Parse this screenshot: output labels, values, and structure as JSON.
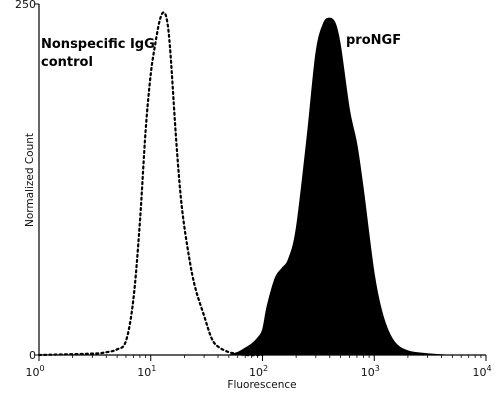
{
  "chart_data": {
    "type": "area",
    "xlabel": "Fluorescence",
    "ylabel": "Normalized Count",
    "xscale": "log",
    "xlim": [
      1,
      10000
    ],
    "ylim": [
      0,
      250
    ],
    "x_ticks": [
      {
        "value": 1,
        "base": "10",
        "exp": "0"
      },
      {
        "value": 10,
        "base": "10",
        "exp": "1"
      },
      {
        "value": 100,
        "base": "10",
        "exp": "2"
      },
      {
        "value": 1000,
        "base": "10",
        "exp": "3"
      },
      {
        "value": 10000,
        "base": "10",
        "exp": "4"
      }
    ],
    "y_ticks": [
      {
        "value": 0,
        "label": "0"
      },
      {
        "value": 250,
        "label": "250"
      }
    ],
    "grid": false,
    "series": [
      {
        "name": "Nonspecific IgG control",
        "style": "dotted",
        "color": "#000000",
        "x": [
          1,
          3,
          4,
          5,
          6,
          7,
          8,
          9,
          10,
          11,
          12,
          13,
          14,
          15,
          17,
          19,
          22,
          25,
          30,
          35,
          40,
          50,
          60,
          70,
          100
        ],
        "y": [
          0,
          1,
          2,
          4,
          10,
          40,
          95,
          160,
          200,
          222,
          238,
          244,
          238,
          215,
          150,
          105,
          70,
          48,
          28,
          12,
          6,
          2,
          1,
          0,
          0
        ]
      },
      {
        "name": "proNGF",
        "style": "filled",
        "color": "#000000",
        "x": [
          50,
          60,
          70,
          80,
          90,
          100,
          110,
          130,
          150,
          170,
          200,
          250,
          300,
          350,
          400,
          450,
          500,
          600,
          700,
          800,
          1000,
          1200,
          1500,
          2000,
          3000,
          5000,
          10000
        ],
        "y": [
          0,
          2,
          5,
          8,
          12,
          18,
          35,
          55,
          62,
          68,
          90,
          155,
          215,
          236,
          240,
          236,
          220,
          175,
          150,
          118,
          58,
          28,
          10,
          3,
          1,
          0,
          0
        ]
      }
    ],
    "annotations": [
      {
        "text": "Nonspecific IgG",
        "series": "Nonspecific IgG control"
      },
      {
        "text": "control",
        "series": "Nonspecific IgG control"
      },
      {
        "text": "proNGF",
        "series": "proNGF"
      }
    ]
  }
}
